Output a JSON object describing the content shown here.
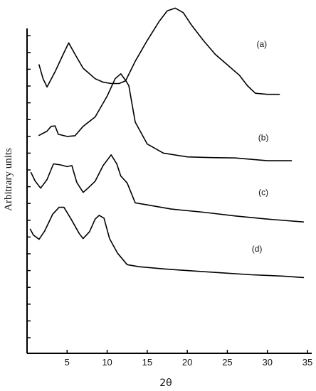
{
  "chart_data": {
    "type": "line",
    "xlabel": "2θ",
    "ylabel": "Arbitrary units",
    "xlim": [
      0,
      35
    ],
    "ylim": [
      0,
      100
    ],
    "xticks": [
      5,
      10,
      15,
      20,
      25,
      30,
      35
    ],
    "xtick_labels": [
      "5",
      "10",
      "15",
      "20",
      "25",
      "30",
      "35"
    ],
    "y_minor_tick_count": 20,
    "grid": false,
    "line_color": "#000000",
    "series": [
      {
        "name": "(a)",
        "points": [
          [
            1.5,
            83
          ],
          [
            2,
            79
          ],
          [
            2.5,
            76.6
          ],
          [
            3.5,
            81
          ],
          [
            4.5,
            86
          ],
          [
            5.2,
            89.3
          ],
          [
            6,
            86
          ],
          [
            7,
            82
          ],
          [
            8.5,
            79
          ],
          [
            9.5,
            78
          ],
          [
            10.5,
            77.6
          ],
          [
            11.5,
            77.6
          ],
          [
            12.3,
            78.4
          ],
          [
            13.5,
            84
          ],
          [
            15,
            90
          ],
          [
            16.5,
            95.5
          ],
          [
            17.5,
            98.5
          ],
          [
            18.5,
            99.3
          ],
          [
            19.5,
            98
          ],
          [
            20.5,
            94.5
          ],
          [
            22,
            90
          ],
          [
            23.5,
            86
          ],
          [
            25,
            83
          ],
          [
            26.5,
            80
          ],
          [
            27.5,
            77
          ],
          [
            28.5,
            74.8
          ],
          [
            30,
            74.5
          ],
          [
            31.5,
            74.5
          ]
        ]
      },
      {
        "name": "(b)",
        "points": [
          [
            1.5,
            62.7
          ],
          [
            2.5,
            63.9
          ],
          [
            3,
            65.3
          ],
          [
            3.5,
            65.4
          ],
          [
            3.9,
            63
          ],
          [
            5,
            62.4
          ],
          [
            6,
            62.6
          ],
          [
            7,
            65.3
          ],
          [
            8.5,
            68
          ],
          [
            10,
            74
          ],
          [
            11,
            79
          ],
          [
            11.7,
            80.4
          ],
          [
            12.3,
            78.5
          ],
          [
            12.7,
            77
          ],
          [
            13.5,
            66.5
          ],
          [
            15,
            60.2
          ],
          [
            17,
            57.6
          ],
          [
            20,
            56.5
          ],
          [
            23,
            56.3
          ],
          [
            26,
            56.2
          ],
          [
            30,
            55.4
          ],
          [
            33,
            55.4
          ]
        ]
      },
      {
        "name": "(c)",
        "points": [
          [
            0.5,
            52
          ],
          [
            1,
            49.6
          ],
          [
            1.7,
            47.5
          ],
          [
            2.5,
            50
          ],
          [
            3.3,
            54.5
          ],
          [
            4.2,
            54.2
          ],
          [
            5,
            53.7
          ],
          [
            5.6,
            54
          ],
          [
            6.2,
            49.2
          ],
          [
            7,
            46.3
          ],
          [
            7.6,
            47.5
          ],
          [
            8.5,
            49.5
          ],
          [
            9.5,
            54
          ],
          [
            10.5,
            57.1
          ],
          [
            11.2,
            54.5
          ],
          [
            11.7,
            51
          ],
          [
            12.5,
            49
          ],
          [
            13.5,
            43.3
          ],
          [
            15,
            42.7
          ],
          [
            18,
            41.5
          ],
          [
            22,
            40.6
          ],
          [
            26,
            39.5
          ],
          [
            30,
            38.6
          ],
          [
            34.5,
            37.8
          ]
        ]
      },
      {
        "name": "(d)",
        "points": [
          [
            0.4,
            35.7
          ],
          [
            0.8,
            34
          ],
          [
            1.5,
            32.8
          ],
          [
            2.2,
            35.2
          ],
          [
            3.2,
            40
          ],
          [
            4,
            42
          ],
          [
            4.6,
            42
          ],
          [
            5.5,
            38.6
          ],
          [
            6.5,
            34.5
          ],
          [
            7,
            33
          ],
          [
            7.8,
            35
          ],
          [
            8.5,
            38.6
          ],
          [
            9,
            39.7
          ],
          [
            9.6,
            38.9
          ],
          [
            10.3,
            33
          ],
          [
            11.3,
            28.8
          ],
          [
            12.5,
            25.5
          ],
          [
            14,
            24.9
          ],
          [
            17,
            24.3
          ],
          [
            20,
            23.8
          ],
          [
            24,
            23.2
          ],
          [
            28,
            22.6
          ],
          [
            32,
            22.2
          ],
          [
            34.5,
            21.8
          ]
        ]
      }
    ],
    "annotations": [
      {
        "text": "(a)",
        "x": 29.3,
        "y": 88.1
      },
      {
        "text": "(b)",
        "x": 29.5,
        "y": 61.2
      },
      {
        "text": "(c)",
        "x": 29.5,
        "y": 45.5
      },
      {
        "text": "(d)",
        "x": 28.7,
        "y": 29.2
      }
    ]
  }
}
